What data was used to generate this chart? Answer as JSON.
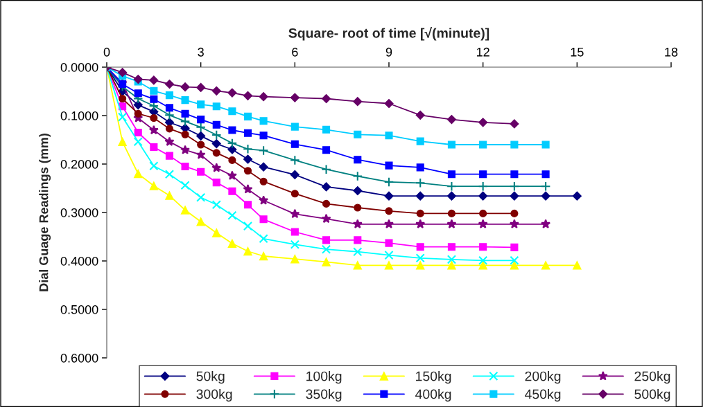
{
  "chart_data": {
    "type": "line",
    "xlabel": "Square- root of time [√(minute)]",
    "ylabel": "Dial Guage Readings (mm)",
    "x": [
      0,
      0.5,
      1,
      1.5,
      2,
      2.5,
      3,
      3.5,
      4,
      4.5,
      5,
      6,
      7,
      8,
      9,
      10,
      11,
      12,
      13,
      14,
      15
    ],
    "series": [
      {
        "name": "50kg",
        "color": "#000080",
        "marker": "diamond",
        "values": [
          0,
          0.05,
          0.078,
          0.092,
          0.114,
          0.126,
          0.142,
          0.158,
          0.17,
          0.19,
          0.206,
          0.222,
          0.247,
          0.255,
          0.266,
          0.266,
          0.266,
          0.266,
          0.266,
          0.266,
          0.266
        ]
      },
      {
        "name": "100kg",
        "color": "#ff00ff",
        "marker": "square",
        "values": [
          0,
          0.081,
          0.135,
          0.165,
          0.183,
          0.205,
          0.216,
          0.238,
          0.256,
          0.284,
          0.314,
          0.34,
          0.357,
          0.357,
          0.363,
          0.371,
          0.371,
          0.371,
          0.372,
          null,
          null
        ]
      },
      {
        "name": "150kg",
        "color": "#ffff00",
        "marker": "triangle",
        "values": [
          0,
          0.154,
          0.22,
          0.245,
          0.265,
          0.295,
          0.319,
          0.342,
          0.364,
          0.38,
          0.39,
          0.396,
          0.402,
          0.409,
          0.409,
          0.409,
          0.409,
          0.409,
          0.409,
          0.409,
          0.409
        ]
      },
      {
        "name": "200kg",
        "color": "#00ffff",
        "marker": "cross",
        "values": [
          0,
          0.103,
          0.154,
          0.204,
          0.221,
          0.244,
          0.269,
          0.284,
          0.306,
          0.328,
          0.354,
          0.366,
          0.376,
          0.381,
          0.388,
          0.394,
          0.397,
          0.399,
          0.399,
          null,
          null
        ]
      },
      {
        "name": "250kg",
        "color": "#800080",
        "marker": "star",
        "values": [
          0,
          0.033,
          0.105,
          0.13,
          0.154,
          0.171,
          0.181,
          0.208,
          0.224,
          0.252,
          0.275,
          0.303,
          0.313,
          0.324,
          0.324,
          0.324,
          0.324,
          0.324,
          0.324,
          0.324,
          null
        ]
      },
      {
        "name": "300kg",
        "color": "#800000",
        "marker": "circle",
        "values": [
          0,
          0.065,
          0.096,
          0.105,
          0.127,
          0.139,
          0.16,
          0.177,
          0.192,
          0.214,
          0.236,
          0.261,
          0.282,
          0.29,
          0.297,
          0.302,
          0.302,
          0.302,
          0.302,
          null,
          null
        ]
      },
      {
        "name": "350kg",
        "color": "#008080",
        "marker": "plus",
        "values": [
          0,
          0.04,
          0.065,
          0.08,
          0.099,
          0.112,
          0.124,
          0.14,
          0.157,
          0.169,
          0.172,
          0.192,
          0.211,
          0.225,
          0.237,
          0.239,
          0.246,
          0.246,
          0.246,
          0.246,
          null
        ]
      },
      {
        "name": "400kg",
        "color": "#0000ff",
        "marker": "square",
        "values": [
          0,
          0.035,
          0.054,
          0.066,
          0.084,
          0.096,
          0.108,
          0.119,
          0.13,
          0.136,
          0.141,
          0.159,
          0.171,
          0.191,
          0.203,
          0.207,
          0.221,
          0.221,
          0.221,
          0.221,
          null
        ]
      },
      {
        "name": "450kg",
        "color": "#00ccff",
        "marker": "square",
        "values": [
          0,
          0.018,
          0.03,
          0.049,
          0.058,
          0.068,
          0.077,
          0.081,
          0.091,
          0.102,
          0.111,
          0.123,
          0.129,
          0.139,
          0.141,
          0.153,
          0.16,
          0.16,
          0.16,
          0.16,
          null
        ]
      },
      {
        "name": "500kg",
        "color": "#660066",
        "marker": "diamond",
        "values": [
          0,
          0.011,
          0.025,
          0.027,
          0.035,
          0.041,
          0.042,
          0.049,
          0.053,
          0.059,
          0.061,
          0.063,
          0.065,
          0.071,
          0.075,
          0.099,
          0.108,
          0.114,
          0.117,
          null,
          null
        ]
      }
    ],
    "xlim": [
      0,
      18
    ],
    "xticks": [
      0,
      3,
      6,
      9,
      12,
      15,
      18
    ],
    "ylim": [
      0.6,
      0
    ],
    "yticks": [
      {
        "value": 0,
        "label": "0.0000"
      },
      {
        "value": 0.1,
        "label": "0.1000"
      },
      {
        "value": 0.2,
        "label": "0.2000"
      },
      {
        "value": 0.3,
        "label": "0.3000"
      },
      {
        "value": 0.4,
        "label": "0.4000"
      },
      {
        "value": 0.5,
        "label": "0.5000"
      },
      {
        "value": 0.6,
        "label": "0.6000"
      }
    ],
    "grid": false,
    "legend": "bottom",
    "line_style": "solid"
  }
}
